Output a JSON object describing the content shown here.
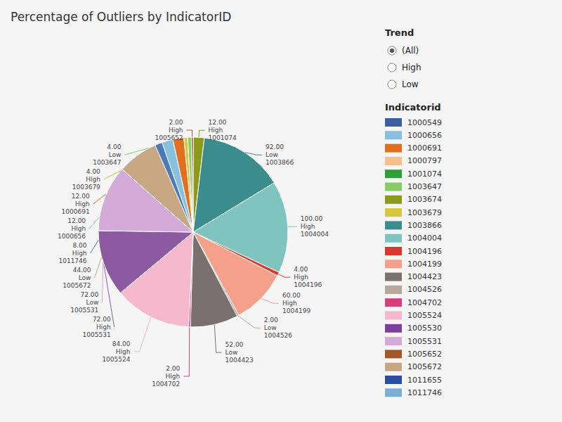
{
  "chart_data": {
    "type": "pie",
    "title": "Percentage of Outliers by IndicatorID",
    "values": [
      12.0,
      92.0,
      100.0,
      4.0,
      60.0,
      2.0,
      52.0,
      2.0,
      84.0,
      72.0,
      72.0,
      44.0,
      8.0,
      12.0,
      12.0,
      4.0,
      4.0,
      2.0
    ],
    "value_labels": [
      "12.00",
      "92.00",
      "100.00",
      "4.00",
      "60.00",
      "2.00",
      "52.00",
      "2.00",
      "84.00",
      "72.00",
      "72.00",
      "44.00",
      "8.00",
      "12.00",
      "12.00",
      "4.00",
      "4.00",
      "2.00"
    ],
    "trends": [
      "High",
      "Low",
      "High",
      "High",
      "High",
      "Low",
      "Low",
      "High",
      "High",
      "High",
      "Low",
      "Low",
      "High",
      "High",
      "High",
      "High",
      "Low",
      "High"
    ],
    "indicators": [
      "1001074",
      "1003866",
      "1004004",
      "1004196",
      "1004199",
      "1004526",
      "1004423",
      "1004702",
      "1005524",
      "1005531",
      "1005531",
      "1005672",
      "1011746",
      "1000656",
      "1000691",
      "1003679",
      "1003647",
      "1005652"
    ],
    "colors": [
      "#8b9a1a",
      "#3a8d8c",
      "#7fc4be",
      "#d63b2f",
      "#f4a08a",
      "#b8a89a",
      "#7a7070",
      "#d4407a",
      "#f5b8cc",
      "#8b5aa0",
      "#d4aad8",
      "#c8a882",
      "#4a7ab8",
      "#88c0e0",
      "#e07020",
      "#d8c840",
      "#88cc66",
      "#a05828"
    ],
    "trend_filter": {
      "title": "Trend",
      "options": [
        "(All)",
        "High",
        "Low"
      ],
      "selected": "(All)"
    },
    "indicator_legend": {
      "title": "Indicatorid",
      "items": [
        {
          "name": "1000549",
          "color": "#3b5fa0"
        },
        {
          "name": "1000656",
          "color": "#88c0e0"
        },
        {
          "name": "1000691",
          "color": "#e07020"
        },
        {
          "name": "1000797",
          "color": "#f5c08a"
        },
        {
          "name": "1001074",
          "color": "#2e9e38"
        },
        {
          "name": "1003647",
          "color": "#88cc66"
        },
        {
          "name": "1003674",
          "color": "#8b9a1a"
        },
        {
          "name": "1003679",
          "color": "#d8c840"
        },
        {
          "name": "1003866",
          "color": "#3a8d8c"
        },
        {
          "name": "1004004",
          "color": "#7fc4be"
        },
        {
          "name": "1004196",
          "color": "#d63b2f"
        },
        {
          "name": "1004199",
          "color": "#f4a08a"
        },
        {
          "name": "1004423",
          "color": "#7a7070"
        },
        {
          "name": "1004526",
          "color": "#b8a89a"
        },
        {
          "name": "1004702",
          "color": "#d4407a"
        },
        {
          "name": "1005524",
          "color": "#f5b8cc"
        },
        {
          "name": "1005530",
          "color": "#7b3f9e"
        },
        {
          "name": "1005531",
          "color": "#d4aad8"
        },
        {
          "name": "1005652",
          "color": "#a05828"
        },
        {
          "name": "1005672",
          "color": "#c8a882"
        },
        {
          "name": "1011655",
          "color": "#2a4ea0"
        },
        {
          "name": "1011746",
          "color": "#7aaed4"
        }
      ]
    },
    "background_color": "#f5f5f5"
  }
}
